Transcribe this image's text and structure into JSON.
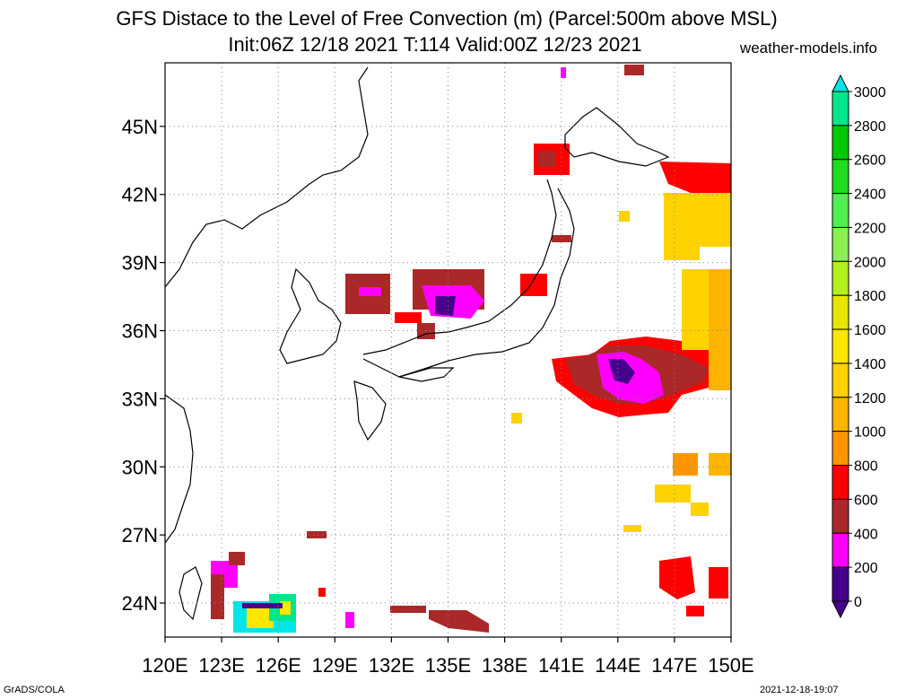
{
  "title": {
    "line1": "GFS Distace to the Level of Free Convection (m) (Parcel:500m above MSL)",
    "line2": "Init:06Z 12/18 2021 T:114 Valid:00Z 12/23 2021"
  },
  "site": "weather-models.info",
  "footer": {
    "left": "GrADS/COLA",
    "right": "2021-12-18-19:07"
  },
  "map": {
    "lon_labels": [
      "120E",
      "123E",
      "126E",
      "129E",
      "132E",
      "135E",
      "138E",
      "141E",
      "144E",
      "147E",
      "150E"
    ],
    "lat_labels": [
      "45N",
      "42N",
      "39N",
      "36N",
      "33N",
      "30N",
      "27N",
      "24N"
    ],
    "lon_range": [
      120,
      150
    ],
    "lat_range": [
      22.5,
      47.8
    ]
  },
  "colorbar": {
    "labels": [
      "3000",
      "2800",
      "2600",
      "2400",
      "2200",
      "2000",
      "1800",
      "1600",
      "1400",
      "1200",
      "1000",
      "800",
      "600",
      "400",
      "200",
      "0"
    ],
    "colors": [
      "#00e6e6",
      "#00e68c",
      "#00c800",
      "#1edc1e",
      "#50f050",
      "#8cf050",
      "#b4f01e",
      "#e6e600",
      "#ffe600",
      "#ffd200",
      "#ffb400",
      "#ff9600",
      "#ff0000",
      "#aa2828",
      "#ff00ff",
      "#46008c"
    ],
    "top_arrow_color": "#00e6e6",
    "bottom_arrow_color": "#46008c"
  }
}
